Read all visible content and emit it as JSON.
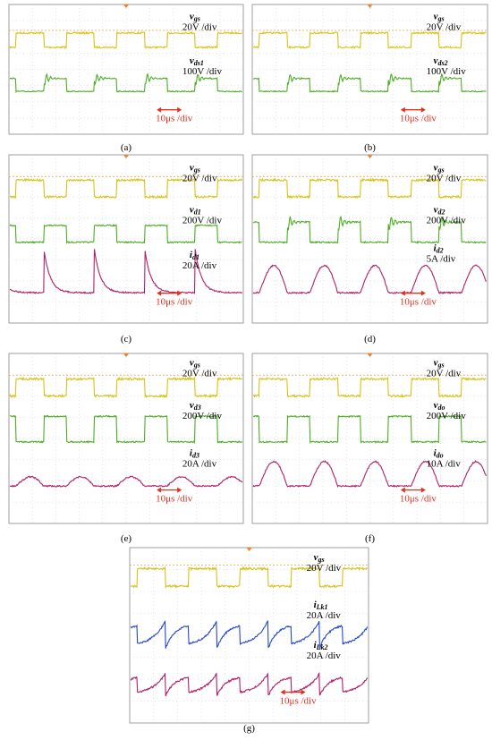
{
  "panels": [
    {
      "caption": "(a)",
      "time_scale": "10μs /div",
      "labels": [
        {
          "symbol": "v",
          "sub": "gs",
          "scale": "20V /div"
        },
        {
          "symbol": "v",
          "sub": "ds1",
          "scale": "100V /div"
        }
      ]
    },
    {
      "caption": "(b)",
      "time_scale": "10μs /div",
      "labels": [
        {
          "symbol": "v",
          "sub": "gs",
          "scale": "20V /div"
        },
        {
          "symbol": "v",
          "sub": "ds2",
          "scale": "100V /div"
        }
      ]
    },
    {
      "caption": "(c)",
      "time_scale": "10μs /div",
      "labels": [
        {
          "symbol": "v",
          "sub": "gs",
          "scale": "20V /div"
        },
        {
          "symbol": "v",
          "sub": "d1",
          "scale": "200V /div"
        },
        {
          "symbol": "i",
          "sub": "d1",
          "scale": "20A /div"
        }
      ]
    },
    {
      "caption": "(d)",
      "time_scale": "10μs /div",
      "labels": [
        {
          "symbol": "v",
          "sub": "gs",
          "scale": "20V /div"
        },
        {
          "symbol": "v",
          "sub": "d2",
          "scale": "200V /div"
        },
        {
          "symbol": "i",
          "sub": "d2",
          "scale": "5A /div"
        }
      ]
    },
    {
      "caption": "(e)",
      "time_scale": "10μs /div",
      "labels": [
        {
          "symbol": "v",
          "sub": "gs",
          "scale": "20V /div"
        },
        {
          "symbol": "v",
          "sub": "d3",
          "scale": "200V /div"
        },
        {
          "symbol": "i",
          "sub": "d3",
          "scale": "20A /div"
        }
      ]
    },
    {
      "caption": "(f)",
      "time_scale": "10μs /div",
      "labels": [
        {
          "symbol": "v",
          "sub": "gs",
          "scale": "20V /div"
        },
        {
          "symbol": "v",
          "sub": "do",
          "scale": "200V /div"
        },
        {
          "symbol": "i",
          "sub": "do",
          "scale": "10A /div"
        }
      ]
    },
    {
      "caption": "(g)",
      "time_scale": "10μs /div",
      "labels": [
        {
          "symbol": "v",
          "sub": "gs",
          "scale": "20V /div"
        },
        {
          "symbol": "i",
          "sub": "Lk1",
          "scale": "20A /div"
        },
        {
          "symbol": "i",
          "sub": "Lk2",
          "scale": "20A /div"
        }
      ]
    }
  ]
}
